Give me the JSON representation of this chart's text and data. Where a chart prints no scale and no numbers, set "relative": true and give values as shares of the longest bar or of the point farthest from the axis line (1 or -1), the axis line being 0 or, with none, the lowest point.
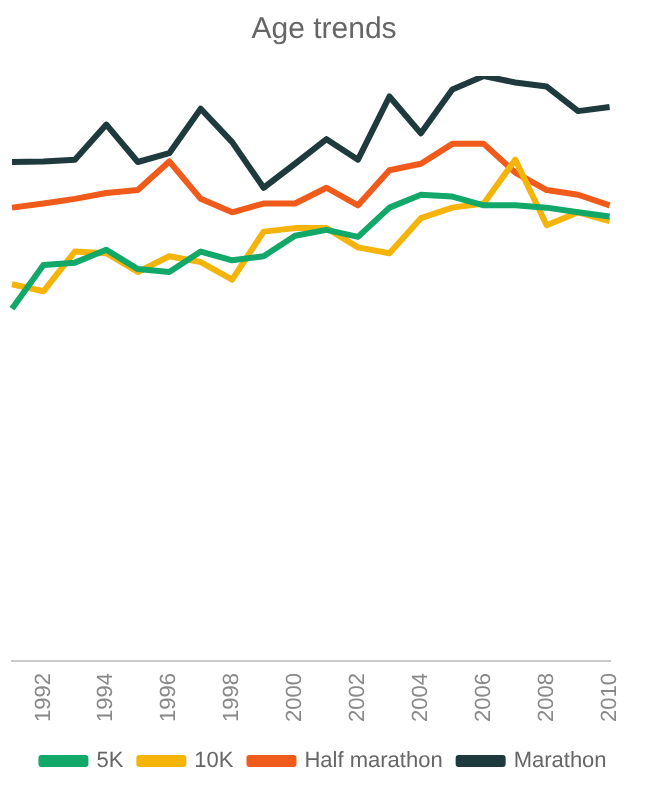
{
  "chart_data": {
    "type": "line",
    "title": "Age trends",
    "relative": true,
    "grid": false,
    "legend": "bottom",
    "marker": "none",
    "line_style": "solid",
    "categories": [
      null,
      "1992",
      null,
      "1994",
      null,
      "1996",
      null,
      "1998",
      null,
      "2000",
      null,
      "2002",
      null,
      "2004",
      null,
      "2006",
      null,
      "2008",
      null,
      "2010"
    ],
    "series": [
      {
        "name": "5K",
        "color": "#12a86a",
        "values": [
          0.602,
          0.677,
          0.681,
          0.703,
          0.67,
          0.665,
          0.7,
          0.685,
          0.692,
          0.727,
          0.737,
          0.725,
          0.775,
          0.797,
          0.794,
          0.779,
          0.779,
          0.775,
          0.767,
          0.76
        ]
      },
      {
        "name": "10K",
        "color": "#f5b40a",
        "values": [
          0.644,
          0.632,
          0.7,
          0.697,
          0.665,
          0.692,
          0.682,
          0.652,
          0.734,
          0.74,
          0.74,
          0.707,
          0.697,
          0.757,
          0.775,
          0.782,
          0.857,
          0.745,
          0.767,
          0.752
        ]
      },
      {
        "name": "Half marathon",
        "color": "#f05a1a",
        "values": [
          0.775,
          0.782,
          0.79,
          0.8,
          0.805,
          0.854,
          0.79,
          0.767,
          0.782,
          0.782,
          0.809,
          0.779,
          0.839,
          0.85,
          0.884,
          0.884,
          0.835,
          0.805,
          0.797,
          0.779
        ]
      },
      {
        "name": "Marathon",
        "color": "#1f3a3d",
        "values": [
          0.853,
          0.854,
          0.857,
          0.917,
          0.853,
          0.868,
          0.944,
          0.887,
          0.809,
          0.85,
          0.892,
          0.857,
          0.965,
          0.902,
          0.977,
          1.0,
          0.989,
          0.982,
          0.94,
          0.947
        ]
      }
    ]
  }
}
